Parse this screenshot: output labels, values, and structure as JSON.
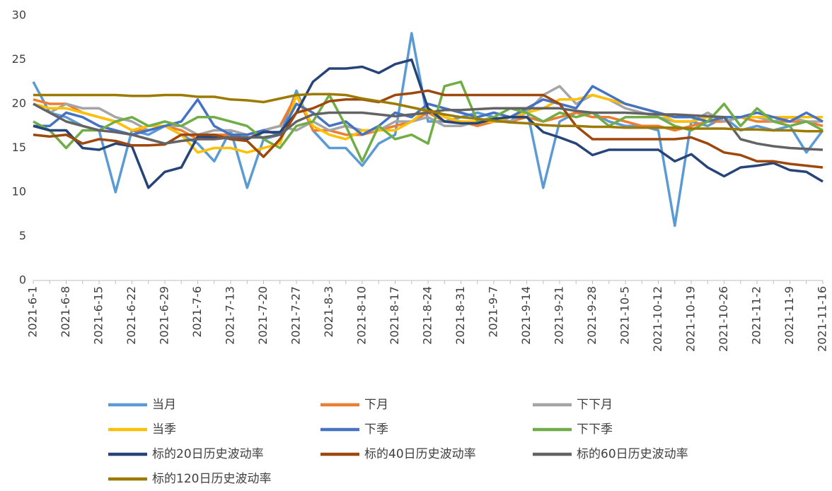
{
  "chart_data": {
    "type": "line",
    "categories": [
      "2021-6-1",
      null,
      "2021-6-8",
      null,
      "2021-6-15",
      null,
      "2021-6-22",
      null,
      "2021-6-29",
      null,
      "2021-7-6",
      null,
      "2021-7-13",
      null,
      "2021-7-20",
      null,
      "2021-7-27",
      null,
      "2021-8-3",
      null,
      "2021-8-10",
      null,
      "2021-8-17",
      null,
      "2021-8-24",
      null,
      "2021-8-31",
      null,
      "2021-9-7",
      null,
      "2021-9-14",
      null,
      "2021-9-21",
      null,
      "2021-9-28",
      null,
      "2021-10-5",
      null,
      "2021-10-12",
      null,
      "2021-10-19",
      null,
      "2021-10-26",
      null,
      "2021-11-2",
      null,
      "2021-11-9",
      null,
      "2021-11-16"
    ],
    "ylim": [
      0,
      30
    ],
    "yticks": [
      0,
      5,
      10,
      15,
      20,
      25,
      30
    ],
    "grid": false,
    "series": [
      {
        "name": "当月",
        "color": "#5b9bd5",
        "values": [
          22.5,
          19,
          18.5,
          17.5,
          17,
          10,
          17,
          16.5,
          17.5,
          16.5,
          15.5,
          13.5,
          17,
          10.5,
          16,
          16.5,
          21.5,
          17,
          15,
          15,
          13,
          15.5,
          16.5,
          28,
          18,
          18,
          18.5,
          19,
          18.5,
          18,
          19.5,
          10.5,
          18,
          19,
          19,
          18,
          17.5,
          17.5,
          17,
          6.2,
          18,
          17.5,
          18.5,
          17,
          17.5,
          17,
          17.5,
          14.5,
          17
        ]
      },
      {
        "name": "下月",
        "color": "#ed7d31",
        "values": [
          20.5,
          20,
          20,
          19,
          18.5,
          18,
          17,
          17,
          17.5,
          17,
          16,
          16.5,
          16.5,
          16,
          17,
          17.5,
          21,
          17,
          17,
          16.5,
          16.5,
          17,
          17.5,
          18,
          19,
          18,
          18,
          17.5,
          18,
          18,
          18.5,
          18,
          18.5,
          19,
          18.5,
          18.5,
          18,
          17.5,
          17.5,
          17,
          17.5,
          18,
          18,
          18.5,
          18,
          18,
          18,
          18,
          17.5
        ]
      },
      {
        "name": "下下月",
        "color": "#a5a5a5",
        "values": [
          20,
          19,
          20,
          19.5,
          19.5,
          18.5,
          18,
          17,
          17.5,
          17.5,
          16.5,
          17,
          17,
          16.5,
          17,
          17.5,
          17,
          18,
          17,
          17.5,
          17,
          17,
          18,
          18,
          18.5,
          17.5,
          17.5,
          18,
          18,
          18,
          19,
          21,
          22,
          20,
          21,
          20.5,
          19.5,
          19,
          18.5,
          18,
          18,
          19,
          18,
          18.5,
          18.5,
          18,
          18.5,
          18,
          18
        ]
      },
      {
        "name": "当季",
        "color": "#ffc000",
        "values": [
          20,
          19.5,
          19.5,
          19,
          18.5,
          18,
          17,
          17.5,
          17.5,
          16.5,
          14.5,
          15,
          15,
          14.5,
          15,
          15.5,
          21,
          17.5,
          16.5,
          16,
          17,
          17,
          17,
          18,
          19.5,
          18.5,
          18,
          18,
          18,
          18.5,
          19,
          19.5,
          20.5,
          20.5,
          21,
          20.5,
          20,
          19.5,
          19,
          18,
          18,
          18.5,
          18.5,
          18.5,
          18.5,
          18.5,
          18.5,
          18.5,
          18.5
        ]
      },
      {
        "name": "下季",
        "color": "#4472c4",
        "values": [
          17.5,
          17.5,
          19,
          18.5,
          17.5,
          17,
          16.5,
          17,
          17.5,
          18,
          20.5,
          17.5,
          16.5,
          16.5,
          17,
          16.5,
          20,
          19,
          17.5,
          18,
          16.5,
          17.5,
          19,
          18.5,
          20,
          19.5,
          19,
          18.5,
          19,
          18.5,
          19.5,
          20.5,
          20,
          19.5,
          22,
          21,
          20,
          19.5,
          19,
          18.5,
          18.5,
          18,
          18.5,
          18.5,
          19,
          18.5,
          18,
          19,
          18
        ]
      },
      {
        "name": "下下季",
        "color": "#70ad47",
        "values": [
          18,
          17,
          15,
          17,
          17,
          18,
          18.5,
          17.5,
          18,
          17.5,
          18.5,
          18.5,
          18,
          17.5,
          16,
          15,
          17.5,
          18,
          21,
          17.5,
          13.5,
          17.5,
          16,
          16.5,
          15.5,
          22,
          22.5,
          18,
          18.5,
          19.5,
          19,
          18,
          19,
          18.5,
          19,
          17.5,
          18.5,
          18.5,
          18.5,
          17.5,
          17,
          18,
          20,
          17.5,
          19.5,
          18,
          17.5,
          18,
          17
        ]
      },
      {
        "name": "标的20日历史波动率",
        "color": "#264478",
        "values": [
          17.5,
          17,
          17,
          15,
          14.8,
          15.5,
          15.2,
          10.5,
          12.3,
          12.8,
          16.3,
          16.2,
          16.2,
          16,
          16.8,
          16.8,
          19,
          22.5,
          24,
          24,
          24.2,
          23.5,
          24.5,
          25,
          19.5,
          18,
          17.8,
          17.8,
          18.3,
          18.5,
          18.5,
          16.8,
          16.2,
          15.5,
          14.2,
          14.8,
          14.8,
          14.8,
          14.8,
          13.5,
          14.3,
          12.8,
          11.8,
          12.8,
          13,
          13.3,
          12.5,
          12.3,
          11.2
        ]
      },
      {
        "name": "标的40日历史波动率",
        "color": "#9e480e",
        "values": [
          16.5,
          16.3,
          16.5,
          15.5,
          16,
          15.8,
          15.3,
          15.3,
          15.4,
          16.5,
          16.5,
          16.5,
          16,
          15.8,
          14,
          16,
          19,
          19.5,
          20.3,
          20.5,
          20.5,
          20.2,
          21,
          21.2,
          21.5,
          21,
          21,
          21,
          21,
          21,
          21,
          21,
          20,
          17.5,
          16,
          16,
          16,
          16,
          16,
          16,
          16.2,
          15.5,
          14.5,
          14.2,
          13.5,
          13.5,
          13.2,
          13,
          12.8
        ]
      },
      {
        "name": "标的60日历史波动率",
        "color": "#636363",
        "values": [
          20,
          19,
          18,
          17.5,
          17,
          16.8,
          16.5,
          16,
          15.5,
          15.8,
          16,
          16,
          16.2,
          16.2,
          16.2,
          16.5,
          18,
          18.8,
          19,
          19,
          19,
          18.8,
          18.6,
          18.8,
          19,
          19.3,
          19.3,
          19.4,
          19.5,
          19.5,
          19.5,
          19.5,
          19.5,
          19.2,
          19,
          19,
          19,
          18.9,
          18.8,
          18.8,
          18.7,
          18.6,
          18.5,
          16,
          15.5,
          15.2,
          15,
          14.9,
          14.8
        ]
      },
      {
        "name": "标的120日历史波动率",
        "color": "#9c7a00",
        "values": [
          21,
          21,
          21,
          21,
          21,
          21,
          20.9,
          20.9,
          21,
          21,
          20.8,
          20.8,
          20.5,
          20.4,
          20.2,
          20.6,
          21,
          21.1,
          21.1,
          21,
          20.6,
          20.3,
          20,
          19.6,
          19.2,
          18.8,
          18.5,
          18.3,
          18.1,
          17.9,
          17.8,
          17.6,
          17.5,
          17.5,
          17.4,
          17.4,
          17.3,
          17.3,
          17.3,
          17.3,
          17.2,
          17.2,
          17.2,
          17.1,
          17.1,
          17,
          17,
          16.9,
          16.9
        ]
      }
    ]
  }
}
